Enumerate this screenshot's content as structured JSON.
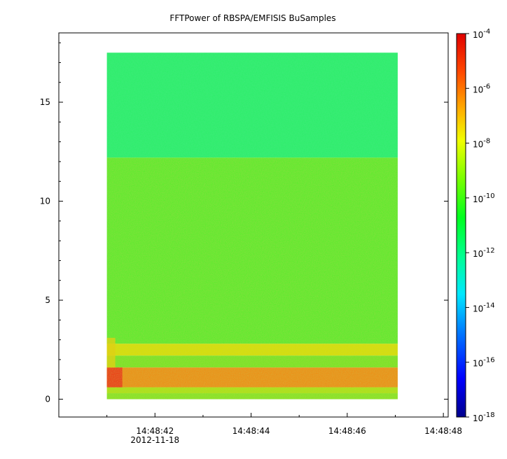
{
  "chart_data": {
    "type": "heatmap",
    "title": "FFTPower of RBSPA/EMFISIS  BuSamples",
    "xlabel": "",
    "ylabel": "",
    "x_ticks": [
      {
        "label": "14:48:42",
        "sublabel": "2012-11-18",
        "value": 42
      },
      {
        "label": "14:48:44",
        "value": 44
      },
      {
        "label": "14:48:46",
        "value": 46
      },
      {
        "label": "14:48:48",
        "value": 48
      }
    ],
    "xlim": [
      40.0,
      48.1
    ],
    "data_x_range": [
      41.0,
      47.05
    ],
    "y_ticks": [
      0,
      5,
      10,
      15
    ],
    "ylim": [
      -0.9,
      18.5
    ],
    "data_y_range": [
      0,
      17.5
    ],
    "colorbar": {
      "scale": "log",
      "range": [
        1e-18,
        0.0001
      ],
      "tick_exponents": [
        -4,
        -6,
        -8,
        -10,
        -12,
        -14,
        -16,
        -18
      ],
      "tick_base": "10",
      "colors": [
        "#0000a0",
        "#0000ff",
        "#0080ff",
        "#00ffff",
        "#00ff80",
        "#00ff00",
        "#80ff00",
        "#ffff00",
        "#ffa000",
        "#ff4000",
        "#ff0000",
        "#e00000"
      ]
    },
    "bands": [
      {
        "y_range": [
          12.2,
          17.5
        ],
        "level": "1e-12",
        "color": "#2dee6a"
      },
      {
        "y_range": [
          2.8,
          12.2
        ],
        "level": "1e-10",
        "color": "#55ee2a"
      },
      {
        "y_range": [
          2.2,
          2.8
        ],
        "level": "1e-8",
        "color": "#d8e200"
      },
      {
        "y_range": [
          1.6,
          2.2
        ],
        "level": "1e-10",
        "color": "#70e820"
      },
      {
        "y_range": [
          0.6,
          1.6
        ],
        "level": "1e-6",
        "color": "#f08a10"
      },
      {
        "y_range": [
          0.3,
          0.6
        ],
        "level": "1e-9",
        "color": "#a8e610"
      },
      {
        "y_range": [
          0.0,
          0.3
        ],
        "level": "1e-10",
        "color": "#80e820"
      }
    ]
  }
}
